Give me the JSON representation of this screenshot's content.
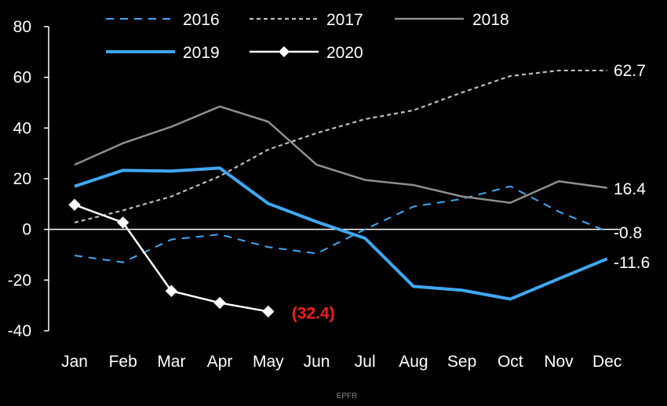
{
  "chart_data": {
    "type": "line",
    "title": "",
    "xlabel": "",
    "ylabel": "",
    "categories": [
      "Jan",
      "Feb",
      "Mar",
      "Apr",
      "May",
      "Jun",
      "Jul",
      "Aug",
      "Sep",
      "Oct",
      "Nov",
      "Dec"
    ],
    "ylim": [
      -40,
      80
    ],
    "yticks": [
      80,
      60,
      40,
      20,
      0,
      -20,
      -40
    ],
    "grid": false,
    "legend_position": "top",
    "series": [
      {
        "name": "2016",
        "color": "#3fa8f4",
        "dash": "dashed",
        "marker": "none",
        "values": [
          -10.3,
          -13.0,
          -4.0,
          -2.0,
          -7.0,
          -9.5,
          0.0,
          9.0,
          12.0,
          17.0,
          7.0,
          -0.8
        ]
      },
      {
        "name": "2017",
        "color": "#bdbdbd",
        "dash": "dotted",
        "marker": "none",
        "values": [
          2.7,
          7.5,
          13.0,
          21.0,
          31.5,
          38.0,
          43.5,
          47.0,
          54.0,
          60.5,
          62.7,
          62.7
        ]
      },
      {
        "name": "2018",
        "color": "#8f8f8f",
        "dash": "solid",
        "marker": "none",
        "values": [
          25.5,
          34.0,
          40.5,
          48.5,
          42.5,
          25.5,
          19.5,
          17.5,
          13.0,
          10.5,
          19.0,
          16.4
        ]
      },
      {
        "name": "2019",
        "color": "#3fa8f4",
        "dash": "solid",
        "marker": "none",
        "values": [
          17.0,
          23.3,
          23.0,
          24.2,
          10.2,
          3.0,
          -3.5,
          -22.5,
          -24.0,
          -27.5,
          -19.5,
          -11.6
        ]
      },
      {
        "name": "2020",
        "color": "#ffffff",
        "dash": "solid",
        "marker": "diamond",
        "values": [
          9.7,
          2.7,
          -24.3,
          -29.0,
          -32.4,
          null,
          null,
          null,
          null,
          null,
          null,
          null
        ]
      }
    ],
    "end_labels": [
      {
        "series": "2017",
        "text": "62.7",
        "color": "#ffffff"
      },
      {
        "series": "2018",
        "text": "16.4",
        "color": "#ffffff"
      },
      {
        "series": "2016",
        "text": "-0.8",
        "color": "#ffffff"
      },
      {
        "series": "2019",
        "text": "-11.6",
        "color": "#ffffff"
      },
      {
        "series": "2020",
        "text": "(32.4)",
        "color": "#ff1a1a"
      }
    ]
  },
  "source": "EPFR"
}
